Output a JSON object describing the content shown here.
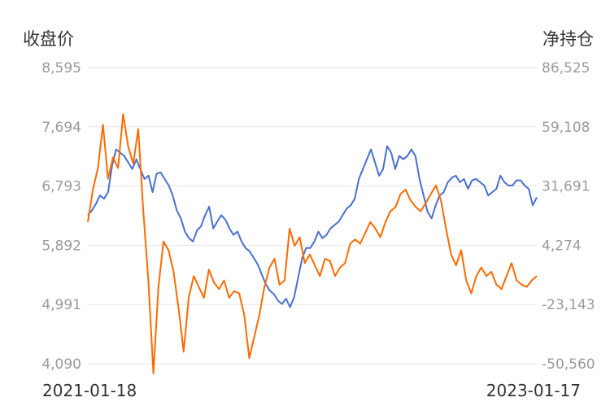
{
  "chart_data": {
    "type": "line",
    "left_axis_title": "收盘价",
    "right_axis_title": "净持仓",
    "x_start_label": "2021-01-18",
    "x_end_label": "2023-01-17",
    "left_ticks": [
      "8,595",
      "7,694",
      "6,793",
      "5,892",
      "4,991",
      "4,090"
    ],
    "right_ticks": [
      "86,525",
      "59,108",
      "31,691",
      "4,274",
      "-23,143",
      "-50,560"
    ],
    "left_range": [
      4090,
      8595
    ],
    "right_range": [
      -50560,
      86525
    ],
    "grid": true,
    "series": [
      {
        "axis": "left",
        "color": "#4a6fcf",
        "values": [
          6350,
          6420,
          6520,
          6650,
          6600,
          6700,
          7100,
          7350,
          7300,
          7250,
          7150,
          7050,
          7200,
          7050,
          6900,
          6950,
          6700,
          6980,
          7000,
          6900,
          6800,
          6650,
          6420,
          6300,
          6100,
          6000,
          5950,
          6120,
          6180,
          6350,
          6480,
          6150,
          6250,
          6350,
          6280,
          6150,
          6050,
          6100,
          5950,
          5850,
          5800,
          5700,
          5600,
          5450,
          5300,
          5200,
          5150,
          5050,
          5000,
          5080,
          4950,
          5100,
          5400,
          5700,
          5850,
          5850,
          5950,
          6100,
          6000,
          6050,
          6150,
          6200,
          6250,
          6350,
          6450,
          6500,
          6600,
          6900,
          7050,
          7200,
          7350,
          7150,
          6950,
          7050,
          7400,
          7300,
          7050,
          7250,
          7200,
          7250,
          7350,
          7250,
          6900,
          6650,
          6400,
          6300,
          6500,
          6650,
          6700,
          6850,
          6920,
          6950,
          6850,
          6900,
          6750,
          6880,
          6900,
          6850,
          6800,
          6650,
          6700,
          6750,
          6950,
          6850,
          6800,
          6800,
          6880,
          6880,
          6800,
          6750,
          6500,
          6620
        ]
      },
      {
        "axis": "right",
        "color": "#ff6a00",
        "values": [
          15000,
          30000,
          40000,
          60000,
          35000,
          45000,
          40000,
          65000,
          50000,
          42000,
          58000,
          20000,
          -12000,
          -55000,
          -15000,
          6000,
          2000,
          -8000,
          -25000,
          -45000,
          -20000,
          -10000,
          -15000,
          -20000,
          -7000,
          -13000,
          -16000,
          -12000,
          -20000,
          -17000,
          -18000,
          -28000,
          -48000,
          -38000,
          -28000,
          -15000,
          -6000,
          -2000,
          -14000,
          -12000,
          12000,
          4000,
          8000,
          -4000,
          0,
          -5000,
          -10000,
          -2000,
          -3000,
          -10000,
          -6000,
          -4000,
          5000,
          7000,
          5000,
          10000,
          15000,
          12000,
          8000,
          15000,
          20000,
          22000,
          28000,
          30000,
          25000,
          22000,
          20000,
          24000,
          28000,
          32000,
          25000,
          12000,
          0,
          -5000,
          2000,
          -12000,
          -18000,
          -10000,
          -6000,
          -10000,
          -8000,
          -14000,
          -16000,
          -10000,
          -4000,
          -12000,
          -14000,
          -15000,
          -12000,
          -10000
        ]
      }
    ]
  }
}
